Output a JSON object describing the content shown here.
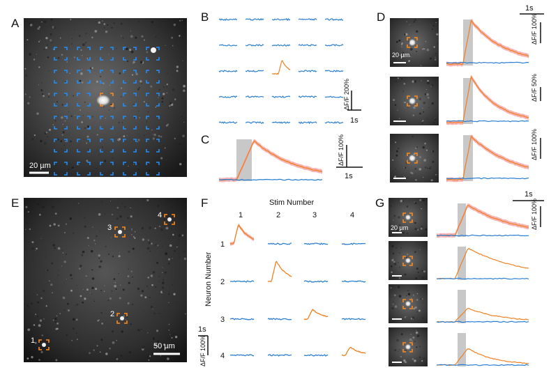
{
  "panels": {
    "A": {
      "label": "A",
      "scalebar": "20 µm"
    },
    "B": {
      "label": "B",
      "scale_y": "ΔF/F 200%",
      "scale_x": "1s"
    },
    "C": {
      "label": "C",
      "scale_y": "ΔF/F 100%",
      "scale_x": "1s"
    },
    "D": {
      "label": "D",
      "scale_x": "1s",
      "scale_y_top": "ΔF/F 100%",
      "scale_y_mid": "ΔF/F 50%",
      "scale_y_bot": "ΔF/F 100%",
      "scalebar": "20 µm"
    },
    "E": {
      "label": "E",
      "scalebar": "50 µm",
      "neurons": [
        "1",
        "2",
        "3",
        "4"
      ]
    },
    "F": {
      "label": "F",
      "col_title": "Stim Number",
      "row_title": "Neuron Number",
      "cols": [
        "1",
        "2",
        "3",
        "4"
      ],
      "rows": [
        "1",
        "2",
        "3",
        "4"
      ],
      "scale_x": "1s",
      "scale_y": "ΔF/F 100%"
    },
    "G": {
      "label": "G",
      "scale_x": "1s",
      "scale_y": "ΔF/F 100%",
      "scalebar": "20 µm"
    }
  },
  "colors": {
    "stim_trace": "#f08020",
    "other_trace": "#2a7fd0",
    "roi_blue": "#1e8fff",
    "roi_orange": "#ff8a1c",
    "stim_shade": "#c8c8c8",
    "error_band": "#f4a0a0"
  }
}
